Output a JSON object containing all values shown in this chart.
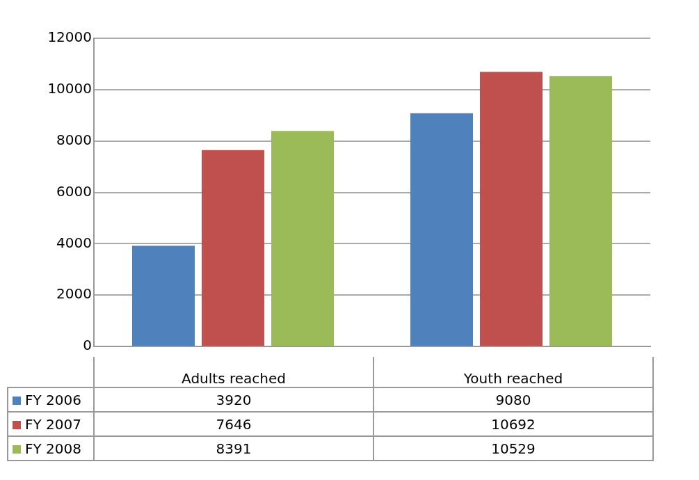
{
  "chart_data": {
    "type": "bar",
    "categories": [
      "Adults reached",
      "Youth reached"
    ],
    "series": [
      {
        "name": "FY 2006",
        "color": "#4f81bd",
        "values": [
          3920,
          9080
        ]
      },
      {
        "name": "FY 2007",
        "color": "#c0504d",
        "values": [
          7646,
          10692
        ]
      },
      {
        "name": "FY 2008",
        "color": "#9bbb59",
        "values": [
          8391,
          10529
        ]
      }
    ],
    "ylim": [
      0,
      12000
    ],
    "yticks": [
      0,
      2000,
      4000,
      6000,
      8000,
      10000,
      12000
    ],
    "grid": "y",
    "legend": "bottom",
    "data_labels": true
  }
}
